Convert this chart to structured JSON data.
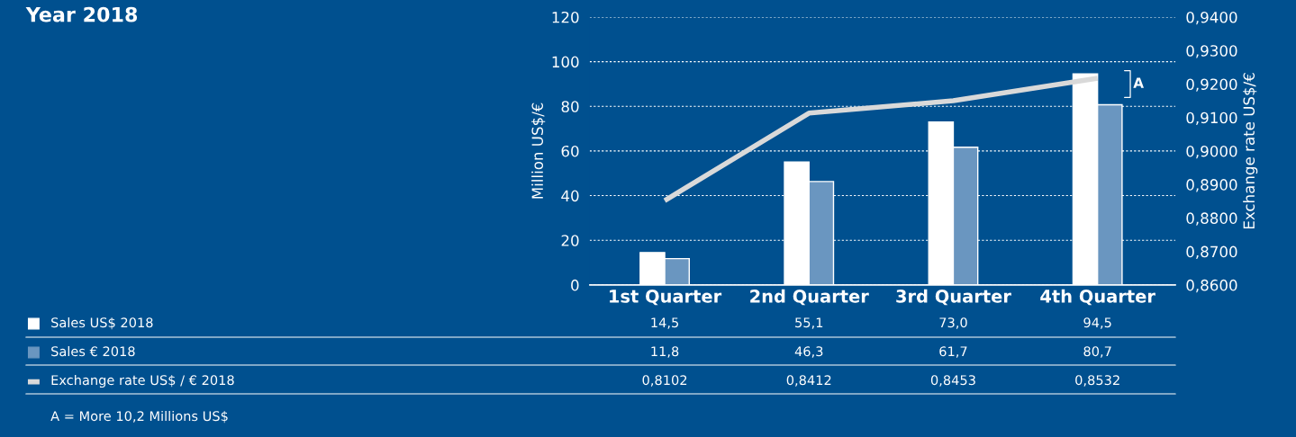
{
  "chart_data": {
    "type": "bar",
    "title": "Year 2018",
    "categories": [
      "1st Quarter",
      "2nd Quarter",
      "3rd Quarter",
      "4th Quarter"
    ],
    "ylabel": "Million US$/€",
    "y2label": "Exchange rate US$/€",
    "series": [
      {
        "name": "Sales US$ 2018",
        "color": "#ffffff",
        "values": [
          14.5,
          55.1,
          73.0,
          94.5
        ],
        "value_labels": [
          "14,5",
          "55,1",
          "73,0",
          "94,5"
        ]
      },
      {
        "name": "Sales € 2018",
        "color": "#6a96c0",
        "values": [
          11.8,
          46.3,
          61.7,
          80.7
        ],
        "value_labels": [
          "11,8",
          "46,3",
          "61,7",
          "80,7"
        ]
      },
      {
        "name": "Exchange rate US$ / € 2018",
        "type": "line",
        "axis": "y2",
        "color": "#d9d9d9",
        "values": [
          0.8852,
          0.9113,
          0.915,
          0.9217
        ]
      }
    ],
    "ylim": [
      0,
      120
    ],
    "yticks": [
      0,
      20,
      40,
      60,
      80,
      100,
      120
    ],
    "y2lim": [
      0.86,
      0.94
    ],
    "y2ticks": [
      {
        "value": 0.86,
        "label": "0,8600"
      },
      {
        "value": 0.87,
        "label": "0,8700"
      },
      {
        "value": 0.88,
        "label": "0,8800"
      },
      {
        "value": 0.89,
        "label": "0,8900"
      },
      {
        "value": 0.9,
        "label": "0,9000"
      },
      {
        "value": 0.91,
        "label": "0,9100"
      },
      {
        "value": 0.92,
        "label": "0,9200"
      },
      {
        "value": 0.93,
        "label": "0,9300"
      },
      {
        "value": 0.94,
        "label": "0,9400"
      }
    ],
    "grid": "y",
    "line_style": "solid",
    "marker": "none",
    "legend": "bottom left",
    "annotations": [
      {
        "text": "A",
        "x": "4th Quarter",
        "y": 90
      },
      "0,8102",
      "0,8412",
      "0,8453",
      "0,8532",
      "A = More 10,2 Millions US$"
    ]
  }
}
